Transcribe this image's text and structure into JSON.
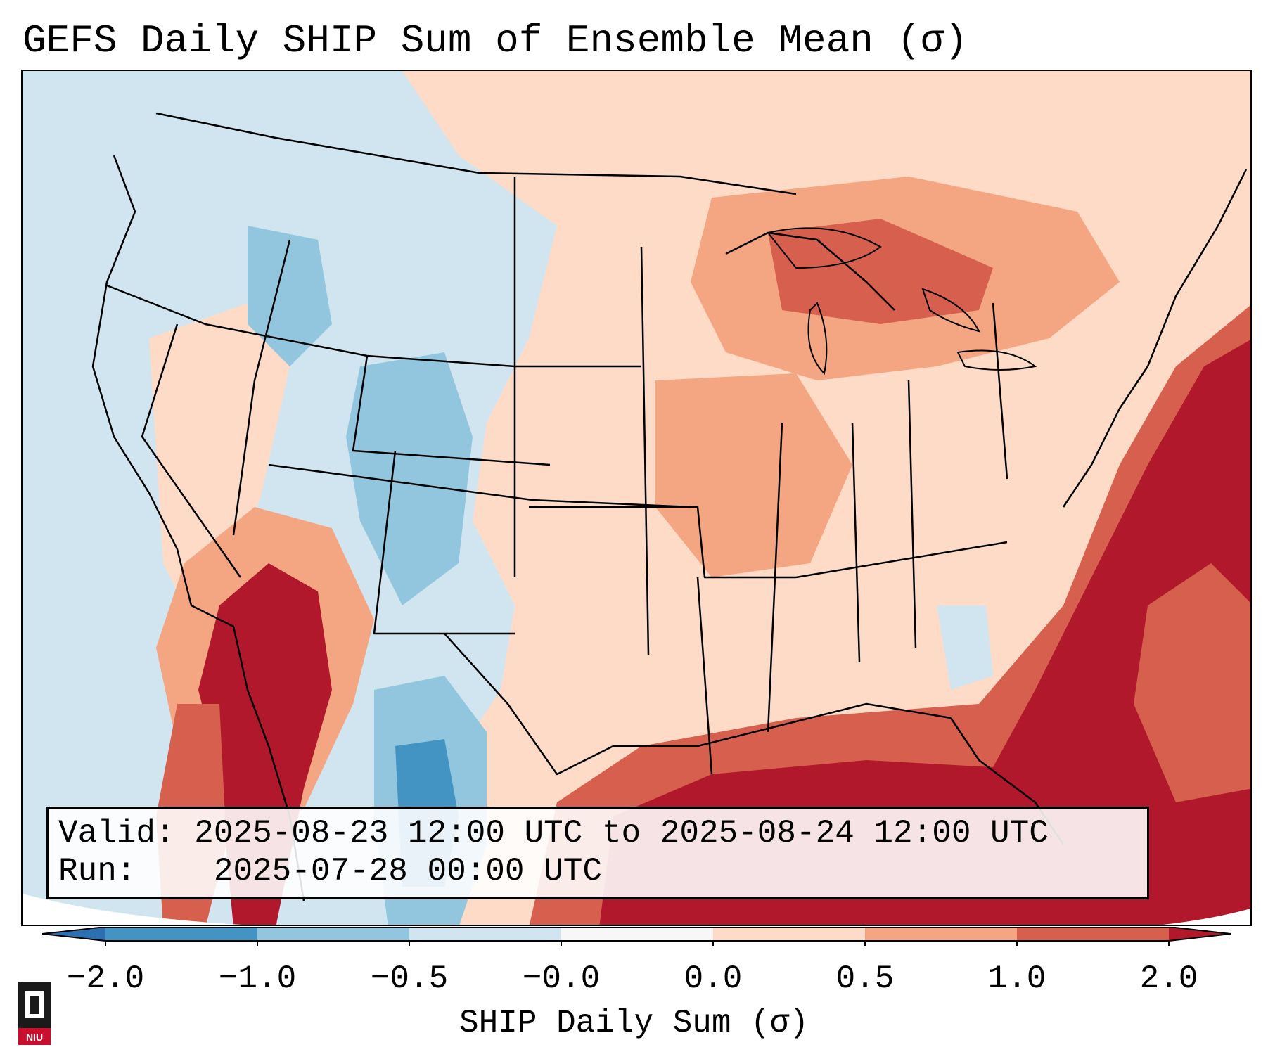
{
  "title": "GEFS Daily SHIP Sum of Ensemble Mean (σ)",
  "info": {
    "valid_label": "Valid:",
    "valid_value": "2025-08-23 12:00 UTC to 2025-08-24 12:00 UTC",
    "run_label": "Run:",
    "run_value": "2025-07-28 00:00 UTC"
  },
  "colorbar": {
    "label": "SHIP Daily Sum (σ)",
    "ticks": [
      "−2.0",
      "−1.0",
      "−0.5",
      "−0.0",
      "0.0",
      "0.5",
      "1.0",
      "2.0"
    ],
    "colors": [
      "#2b70b0",
      "#4393c3",
      "#92c5de",
      "#d1e5f0",
      "#f7f7f7",
      "#fddbc7",
      "#f4a582",
      "#d6604d",
      "#b2182b"
    ]
  },
  "map": {
    "region": "Continental United States",
    "ocean_color": "#b2182b",
    "land_base_color": "#d1e5f0"
  },
  "logo": {
    "text": "NIU"
  }
}
